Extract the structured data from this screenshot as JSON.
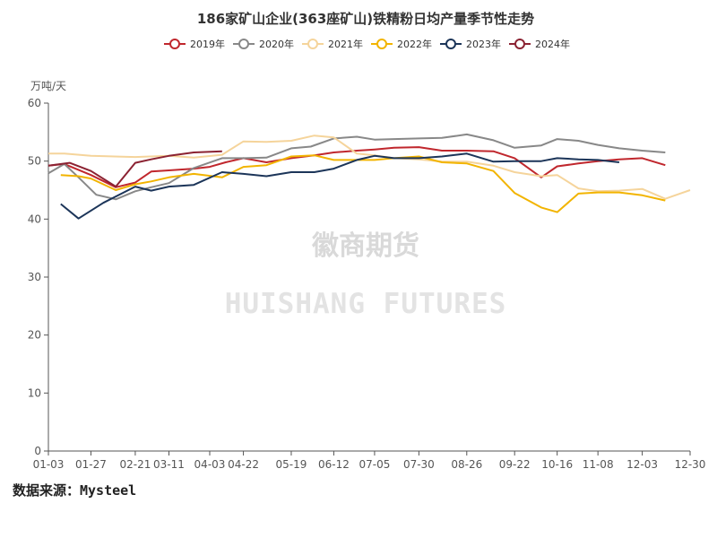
{
  "source_label": "数据来源：Mysteel",
  "watermark": {
    "cn": "徽商期货",
    "en": "HUISHANG FUTURES"
  },
  "chart_data": {
    "type": "line",
    "title": "186家矿山企业(363座矿山)铁精粉日均产量季节性走势",
    "ylabel": "万吨/天",
    "xlabel": "",
    "ylim": [
      0,
      60
    ],
    "yticks": [
      0,
      10,
      20,
      30,
      40,
      50,
      60
    ],
    "xlim": [
      "01-03",
      "12-30"
    ],
    "categories": [
      "01-03",
      "01-27",
      "02-21",
      "03-11",
      "04-03",
      "04-22",
      "05-19",
      "06-12",
      "07-05",
      "07-30",
      "08-26",
      "09-22",
      "10-16",
      "11-08",
      "12-03",
      "12-30"
    ],
    "grid": false,
    "legend_position": "top-center",
    "series": [
      {
        "name": "2019年",
        "color": "#c0272d",
        "points": [
          [
            "01-03",
            49.2
          ],
          [
            "01-12",
            49.5
          ],
          [
            "01-27",
            47.6
          ],
          [
            "02-10",
            45.5
          ],
          [
            "02-21",
            46.3
          ],
          [
            "03-01",
            48.2
          ],
          [
            "03-11",
            48.4
          ],
          [
            "03-25",
            48.7
          ],
          [
            "04-03",
            49.0
          ],
          [
            "04-12",
            49.8
          ],
          [
            "04-22",
            50.5
          ],
          [
            "05-05",
            49.8
          ],
          [
            "05-19",
            50.5
          ],
          [
            "06-01",
            51.0
          ],
          [
            "06-12",
            51.5
          ],
          [
            "06-25",
            51.8
          ],
          [
            "07-05",
            52.0
          ],
          [
            "07-16",
            52.3
          ],
          [
            "07-30",
            52.4
          ],
          [
            "08-12",
            51.8
          ],
          [
            "08-26",
            51.8
          ],
          [
            "09-10",
            51.7
          ],
          [
            "09-22",
            50.5
          ],
          [
            "10-07",
            47.2
          ],
          [
            "10-16",
            49.1
          ],
          [
            "10-28",
            49.6
          ],
          [
            "11-08",
            50.0
          ],
          [
            "11-20",
            50.3
          ],
          [
            "12-03",
            50.5
          ],
          [
            "12-16",
            49.3
          ]
        ]
      },
      {
        "name": "2020年",
        "color": "#888888",
        "points": [
          [
            "01-03",
            47.9
          ],
          [
            "01-12",
            49.5
          ],
          [
            "01-20",
            47.2
          ],
          [
            "01-30",
            44.2
          ],
          [
            "02-10",
            43.4
          ],
          [
            "02-21",
            44.8
          ],
          [
            "03-01",
            45.5
          ],
          [
            "03-11",
            46.2
          ],
          [
            "03-25",
            48.8
          ],
          [
            "04-10",
            50.5
          ],
          [
            "04-22",
            50.5
          ],
          [
            "05-05",
            50.6
          ],
          [
            "05-19",
            52.2
          ],
          [
            "05-30",
            52.5
          ],
          [
            "06-12",
            53.9
          ],
          [
            "06-25",
            54.2
          ],
          [
            "07-05",
            53.7
          ],
          [
            "07-16",
            53.8
          ],
          [
            "07-30",
            53.9
          ],
          [
            "08-12",
            54.0
          ],
          [
            "08-26",
            54.6
          ],
          [
            "09-10",
            53.6
          ],
          [
            "09-22",
            52.3
          ],
          [
            "10-07",
            52.7
          ],
          [
            "10-16",
            53.8
          ],
          [
            "10-28",
            53.5
          ],
          [
            "11-08",
            52.8
          ],
          [
            "11-20",
            52.2
          ],
          [
            "12-03",
            51.8
          ],
          [
            "12-16",
            51.5
          ]
        ]
      },
      {
        "name": "2021年",
        "color": "#f5d49b",
        "points": [
          [
            "01-03",
            51.3
          ],
          [
            "01-12",
            51.3
          ],
          [
            "01-27",
            50.9
          ],
          [
            "02-21",
            50.7
          ],
          [
            "03-11",
            50.9
          ],
          [
            "03-25",
            50.6
          ],
          [
            "04-10",
            51.1
          ],
          [
            "04-22",
            53.4
          ],
          [
            "05-05",
            53.3
          ],
          [
            "05-19",
            53.5
          ],
          [
            "06-01",
            54.4
          ],
          [
            "06-12",
            54.1
          ],
          [
            "06-25",
            51.3
          ],
          [
            "07-05",
            51.0
          ],
          [
            "07-16",
            50.5
          ],
          [
            "07-30",
            50.3
          ],
          [
            "08-12",
            49.9
          ],
          [
            "08-26",
            49.9
          ],
          [
            "09-10",
            49.2
          ],
          [
            "09-22",
            48.1
          ],
          [
            "10-07",
            47.4
          ],
          [
            "10-16",
            47.6
          ],
          [
            "10-28",
            45.3
          ],
          [
            "11-08",
            44.8
          ],
          [
            "11-20",
            44.9
          ],
          [
            "12-03",
            45.2
          ],
          [
            "12-16",
            43.5
          ],
          [
            "12-30",
            45.0
          ]
        ]
      },
      {
        "name": "2022年",
        "color": "#f2b400",
        "points": [
          [
            "01-10",
            47.6
          ],
          [
            "01-20",
            47.4
          ],
          [
            "01-27",
            47.0
          ],
          [
            "02-10",
            45.0
          ],
          [
            "02-21",
            46.0
          ],
          [
            "03-01",
            46.5
          ],
          [
            "03-11",
            47.2
          ],
          [
            "03-25",
            47.8
          ],
          [
            "04-10",
            47.2
          ],
          [
            "04-22",
            49.0
          ],
          [
            "05-05",
            49.3
          ],
          [
            "05-19",
            50.8
          ],
          [
            "06-01",
            51.0
          ],
          [
            "06-12",
            50.2
          ],
          [
            "06-25",
            50.2
          ],
          [
            "07-05",
            50.2
          ],
          [
            "07-16",
            50.5
          ],
          [
            "07-30",
            50.8
          ],
          [
            "08-12",
            49.8
          ],
          [
            "08-26",
            49.6
          ],
          [
            "09-10",
            48.3
          ],
          [
            "09-22",
            44.5
          ],
          [
            "10-07",
            42.0
          ],
          [
            "10-16",
            41.2
          ],
          [
            "10-28",
            44.4
          ],
          [
            "11-08",
            44.6
          ],
          [
            "11-20",
            44.6
          ],
          [
            "12-03",
            44.1
          ],
          [
            "12-16",
            43.2
          ]
        ]
      },
      {
        "name": "2023年",
        "color": "#1c3559",
        "points": [
          [
            "01-10",
            42.6
          ],
          [
            "01-20",
            40.1
          ],
          [
            "02-03",
            42.8
          ],
          [
            "02-21",
            45.6
          ],
          [
            "03-01",
            44.9
          ],
          [
            "03-11",
            45.6
          ],
          [
            "03-25",
            45.9
          ],
          [
            "04-10",
            48.1
          ],
          [
            "04-22",
            47.8
          ],
          [
            "05-05",
            47.4
          ],
          [
            "05-19",
            48.1
          ],
          [
            "06-01",
            48.1
          ],
          [
            "06-12",
            48.7
          ],
          [
            "06-25",
            50.2
          ],
          [
            "07-05",
            50.9
          ],
          [
            "07-16",
            50.5
          ],
          [
            "07-30",
            50.5
          ],
          [
            "08-12",
            50.8
          ],
          [
            "08-26",
            51.3
          ],
          [
            "09-10",
            49.9
          ],
          [
            "09-22",
            50.0
          ],
          [
            "10-07",
            50.0
          ],
          [
            "10-16",
            50.5
          ],
          [
            "10-28",
            50.3
          ],
          [
            "11-08",
            50.2
          ],
          [
            "11-20",
            49.8
          ]
        ]
      },
      {
        "name": "2024年",
        "color": "#8b2232",
        "points": [
          [
            "01-03",
            49.2
          ],
          [
            "01-15",
            49.7
          ],
          [
            "01-27",
            48.3
          ],
          [
            "02-10",
            45.6
          ],
          [
            "02-21",
            49.7
          ],
          [
            "03-01",
            50.3
          ],
          [
            "03-11",
            50.9
          ],
          [
            "03-25",
            51.5
          ],
          [
            "04-10",
            51.7
          ]
        ]
      }
    ]
  }
}
